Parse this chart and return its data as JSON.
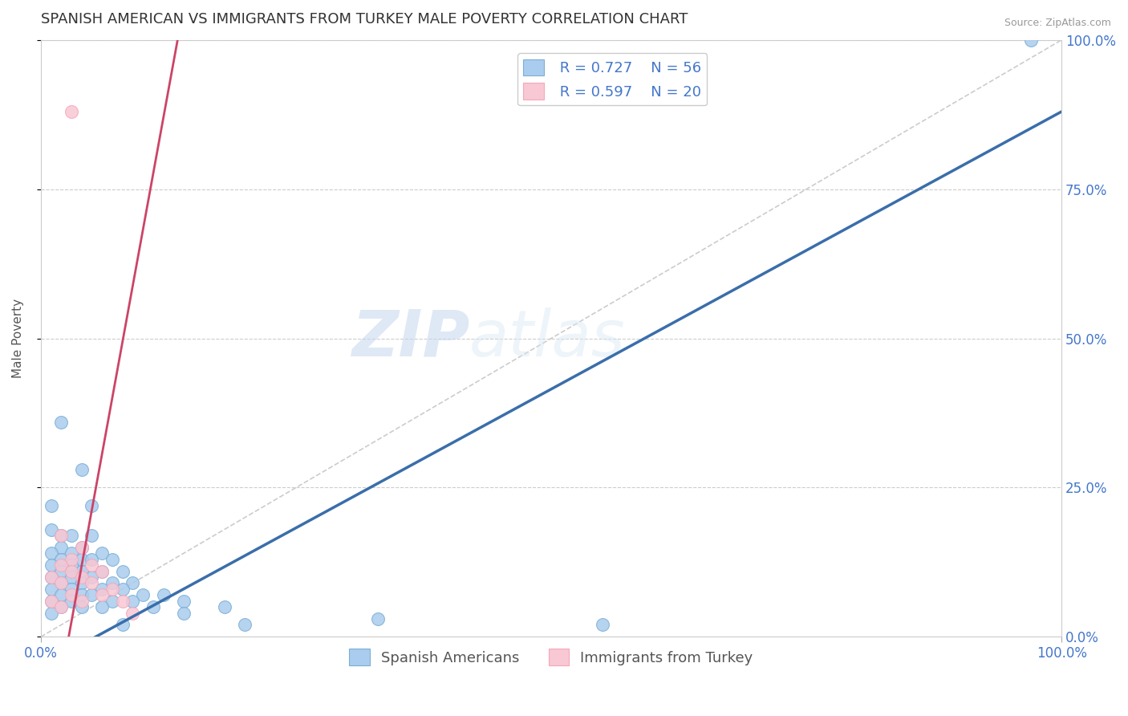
{
  "title": "SPANISH AMERICAN VS IMMIGRANTS FROM TURKEY MALE POVERTY CORRELATION CHART",
  "source": "Source: ZipAtlas.com",
  "ylabel": "Male Poverty",
  "xlim": [
    0,
    1.0
  ],
  "ylim": [
    0,
    1.0
  ],
  "xtick_labels": [
    "0.0%",
    "100.0%"
  ],
  "ytick_labels": [
    "0.0%",
    "25.0%",
    "50.0%",
    "75.0%",
    "100.0%"
  ],
  "ytick_positions": [
    0.0,
    0.25,
    0.5,
    0.75,
    1.0
  ],
  "grid_color": "#cccccc",
  "background_color": "#ffffff",
  "watermark_zip": "ZIP",
  "watermark_atlas": "atlas",
  "blue_color": "#7bafd4",
  "blue_color_light": "#aaccee",
  "pink_color": "#f4a7b9",
  "pink_color_light": "#f8c8d4",
  "legend_blue_R": "R = 0.727",
  "legend_blue_N": "N = 56",
  "legend_pink_R": "R = 0.597",
  "legend_pink_N": "N = 20",
  "legend_label_blue": "Spanish Americans",
  "legend_label_pink": "Immigrants from Turkey",
  "blue_dots": [
    [
      0.02,
      0.36
    ],
    [
      0.04,
      0.28
    ],
    [
      0.01,
      0.22
    ],
    [
      0.05,
      0.22
    ],
    [
      0.01,
      0.18
    ],
    [
      0.02,
      0.17
    ],
    [
      0.03,
      0.17
    ],
    [
      0.05,
      0.17
    ],
    [
      0.02,
      0.15
    ],
    [
      0.04,
      0.15
    ],
    [
      0.01,
      0.14
    ],
    [
      0.03,
      0.14
    ],
    [
      0.06,
      0.14
    ],
    [
      0.02,
      0.13
    ],
    [
      0.04,
      0.13
    ],
    [
      0.05,
      0.13
    ],
    [
      0.07,
      0.13
    ],
    [
      0.01,
      0.12
    ],
    [
      0.03,
      0.12
    ],
    [
      0.02,
      0.11
    ],
    [
      0.04,
      0.11
    ],
    [
      0.06,
      0.11
    ],
    [
      0.08,
      0.11
    ],
    [
      0.01,
      0.1
    ],
    [
      0.03,
      0.1
    ],
    [
      0.05,
      0.1
    ],
    [
      0.02,
      0.09
    ],
    [
      0.04,
      0.09
    ],
    [
      0.07,
      0.09
    ],
    [
      0.09,
      0.09
    ],
    [
      0.01,
      0.08
    ],
    [
      0.03,
      0.08
    ],
    [
      0.06,
      0.08
    ],
    [
      0.08,
      0.08
    ],
    [
      0.02,
      0.07
    ],
    [
      0.04,
      0.07
    ],
    [
      0.05,
      0.07
    ],
    [
      0.1,
      0.07
    ],
    [
      0.12,
      0.07
    ],
    [
      0.01,
      0.06
    ],
    [
      0.03,
      0.06
    ],
    [
      0.07,
      0.06
    ],
    [
      0.09,
      0.06
    ],
    [
      0.14,
      0.06
    ],
    [
      0.02,
      0.05
    ],
    [
      0.04,
      0.05
    ],
    [
      0.06,
      0.05
    ],
    [
      0.11,
      0.05
    ],
    [
      0.18,
      0.05
    ],
    [
      0.01,
      0.04
    ],
    [
      0.14,
      0.04
    ],
    [
      0.33,
      0.03
    ],
    [
      0.2,
      0.02
    ],
    [
      0.55,
      0.02
    ],
    [
      0.97,
      1.0
    ],
    [
      0.08,
      0.02
    ]
  ],
  "pink_dots": [
    [
      0.03,
      0.88
    ],
    [
      0.02,
      0.17
    ],
    [
      0.04,
      0.15
    ],
    [
      0.03,
      0.13
    ],
    [
      0.02,
      0.12
    ],
    [
      0.05,
      0.12
    ],
    [
      0.03,
      0.11
    ],
    [
      0.06,
      0.11
    ],
    [
      0.01,
      0.1
    ],
    [
      0.04,
      0.1
    ],
    [
      0.02,
      0.09
    ],
    [
      0.05,
      0.09
    ],
    [
      0.07,
      0.08
    ],
    [
      0.03,
      0.07
    ],
    [
      0.06,
      0.07
    ],
    [
      0.01,
      0.06
    ],
    [
      0.04,
      0.06
    ],
    [
      0.08,
      0.06
    ],
    [
      0.02,
      0.05
    ],
    [
      0.09,
      0.04
    ]
  ],
  "blue_line": [
    0.0,
    -0.05,
    1.0,
    0.88
  ],
  "pink_line": [
    -0.01,
    -0.35,
    0.15,
    1.15
  ],
  "ref_line": [
    0.0,
    0.0,
    1.0,
    1.0
  ],
  "title_fontsize": 13,
  "axis_label_fontsize": 11,
  "tick_fontsize": 12,
  "legend_fontsize": 13,
  "tick_color": "#4477cc"
}
